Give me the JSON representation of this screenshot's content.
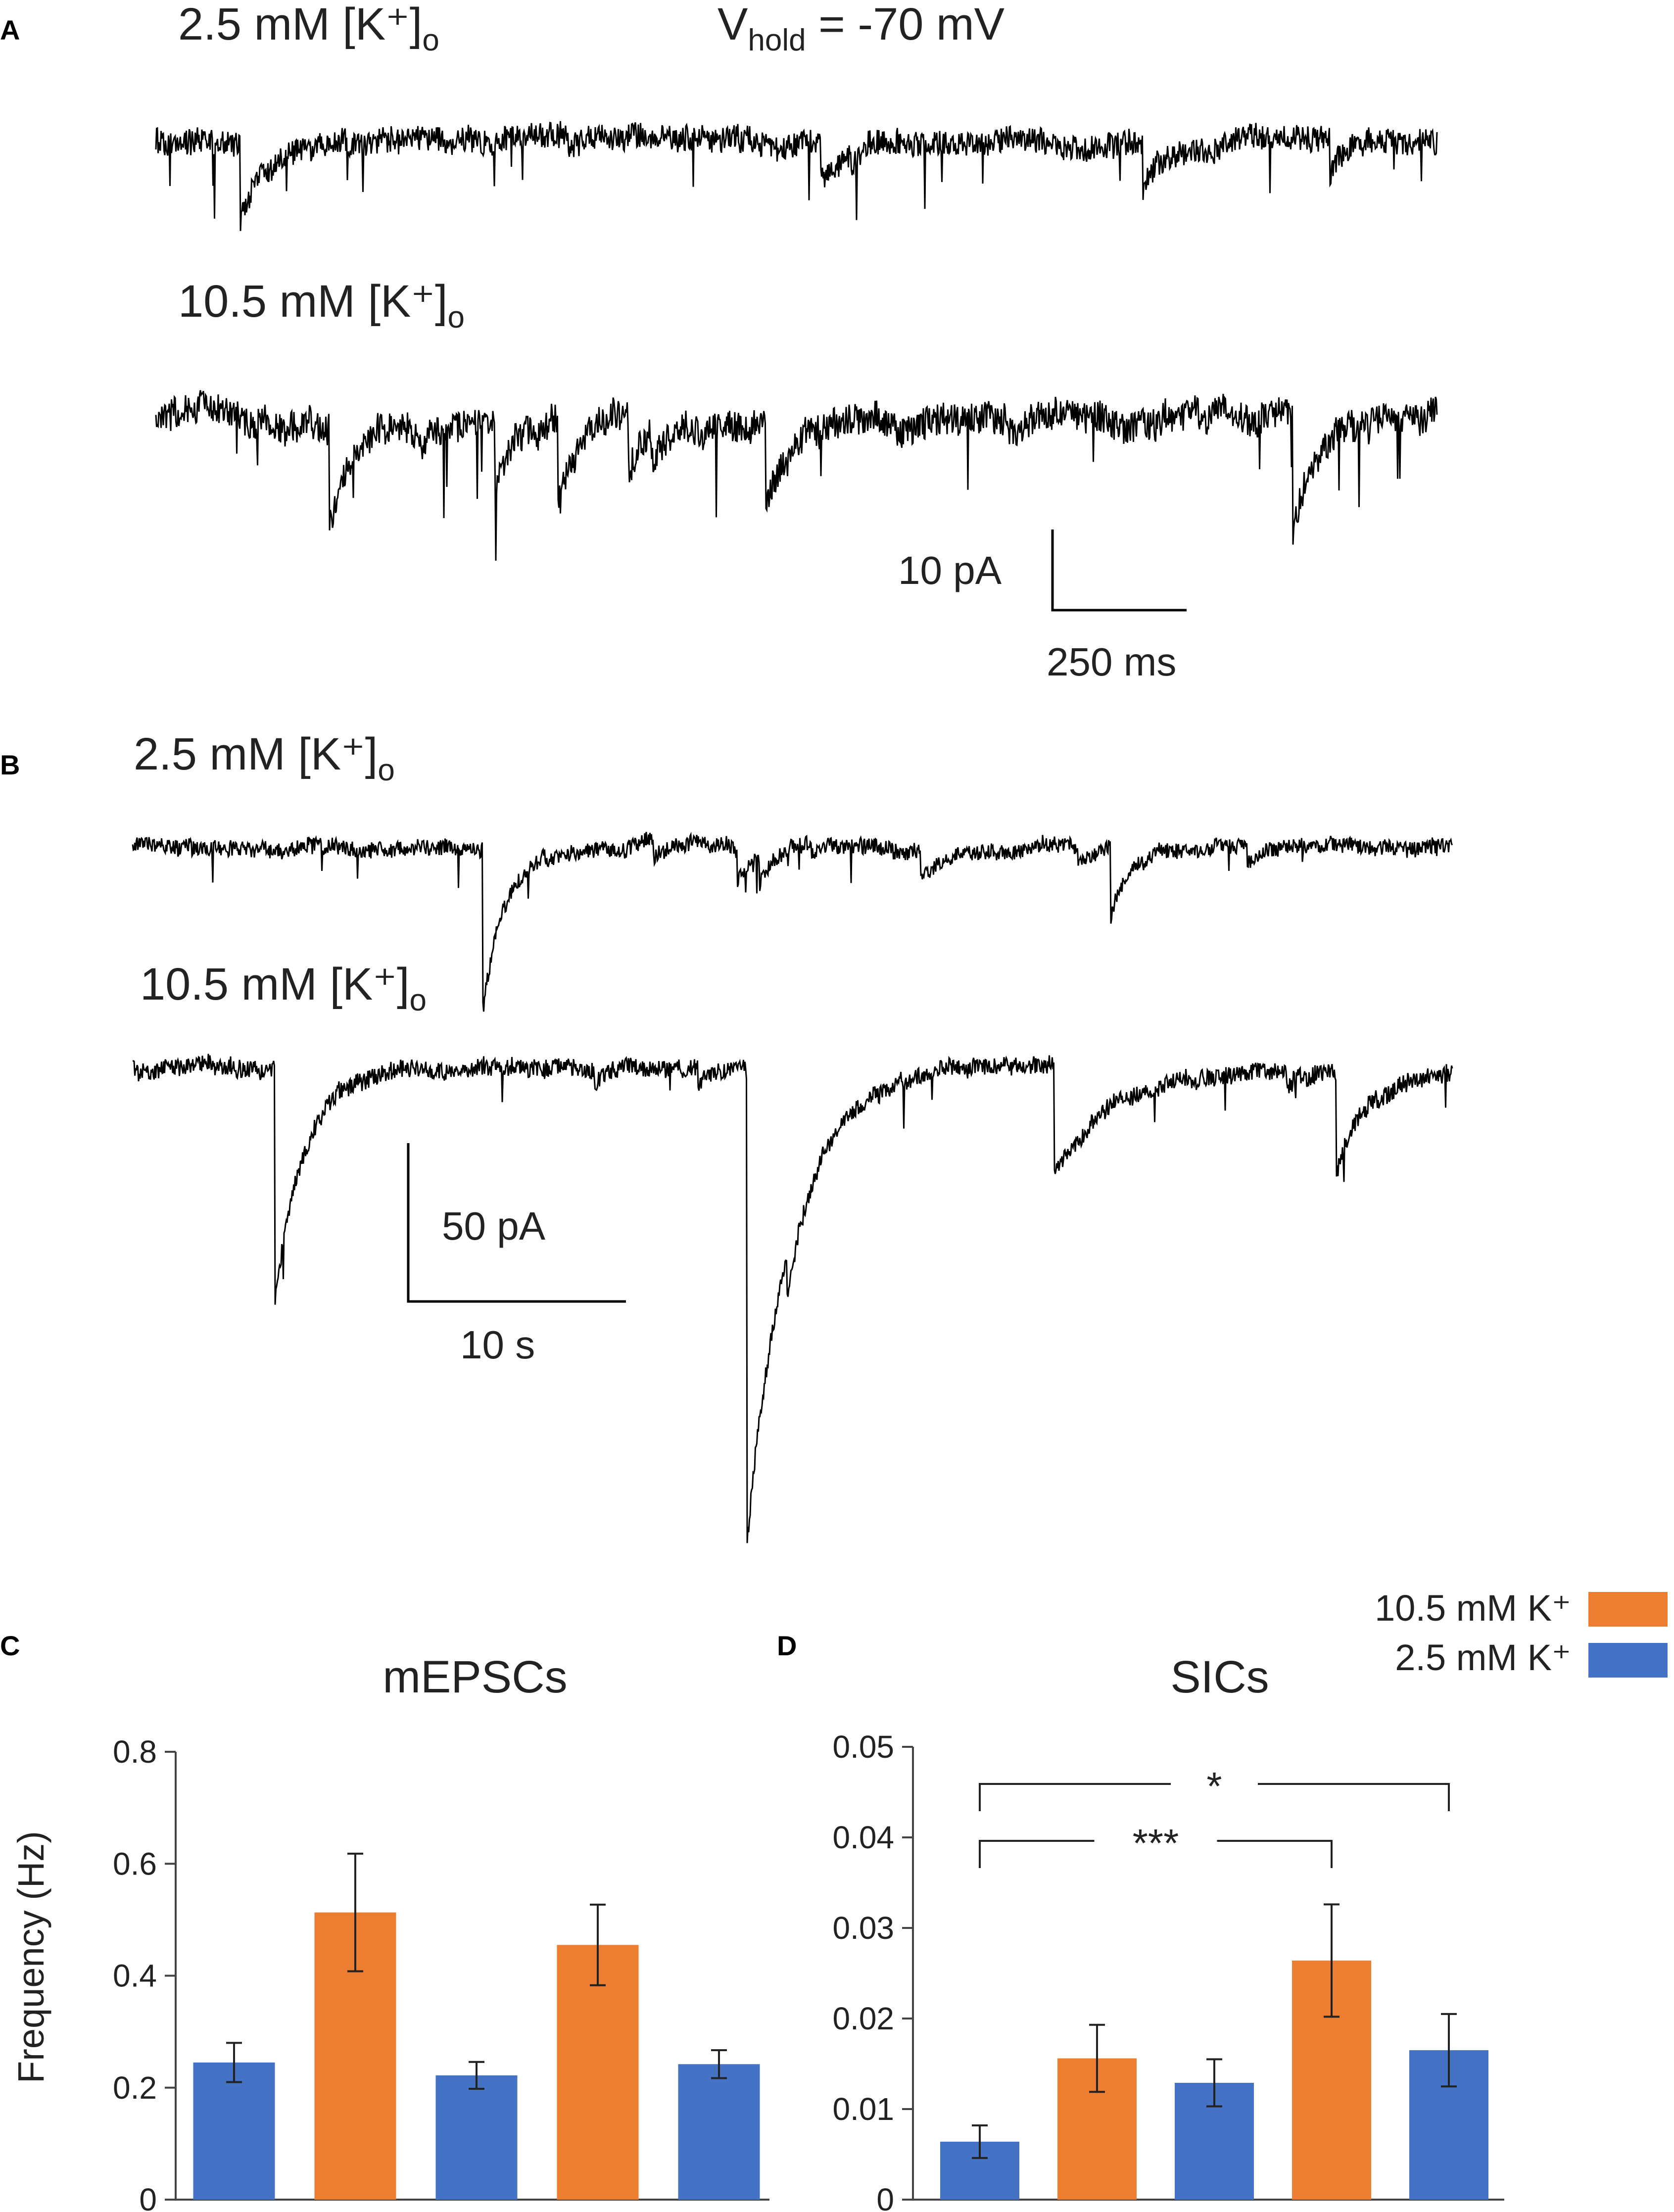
{
  "panels": {
    "A": {
      "letter": "A",
      "trace1_label": "2.5 mM [K⁺]",
      "trace1_sub": "o",
      "trace2_label": "10.5 mM [K⁺]",
      "trace2_sub": "o",
      "vhold_prefix": "V",
      "vhold_sub": "hold",
      "vhold_value": " = -70 mV",
      "scale_y": "10 pA",
      "scale_x": "250 ms"
    },
    "B": {
      "letter": "B",
      "trace1_label": "2.5 mM [K⁺]",
      "trace1_sub": "o",
      "trace2_label": "10.5 mM [K⁺]",
      "trace2_sub": "o",
      "scale_y": "50 pA",
      "scale_x": "10 s"
    }
  },
  "legend": {
    "items": [
      {
        "label": "10.5 mM K⁺",
        "color": "#ED7D31"
      },
      {
        "label": "2.5 mM K⁺",
        "color": "#4472C4"
      }
    ]
  },
  "chart_data": [
    {
      "letter": "C",
      "type": "bar",
      "title": "mEPSCs",
      "ylabel": "Frequency (Hz)",
      "ylim": [
        0,
        0.8
      ],
      "yticks": [
        "0",
        "0.2",
        "0.4",
        "0.6",
        "0.8"
      ],
      "bars": [
        {
          "value": 0.245,
          "err": 0.035,
          "color": "#4472C4"
        },
        {
          "value": 0.513,
          "err": 0.105,
          "color": "#ED7D31"
        },
        {
          "value": 0.222,
          "err": 0.024,
          "color": "#4472C4"
        },
        {
          "value": 0.455,
          "err": 0.072,
          "color": "#ED7D31"
        },
        {
          "value": 0.242,
          "err": 0.025,
          "color": "#4472C4"
        }
      ],
      "significance": []
    },
    {
      "letter": "D",
      "type": "bar",
      "title": "SICs",
      "ylabel": "",
      "ylim": [
        0,
        0.05
      ],
      "yticks": [
        "0",
        "0.01",
        "0.02",
        "0.03",
        "0.04",
        "0.05"
      ],
      "bars": [
        {
          "value": 0.0064,
          "err": 0.0018,
          "color": "#4472C4"
        },
        {
          "value": 0.0156,
          "err": 0.0037,
          "color": "#ED7D31"
        },
        {
          "value": 0.0129,
          "err": 0.0026,
          "color": "#4472C4"
        },
        {
          "value": 0.0264,
          "err": 0.0062,
          "color": "#ED7D31"
        },
        {
          "value": 0.0165,
          "err": 0.004,
          "color": "#4472C4"
        }
      ],
      "significance": [
        {
          "from": 0,
          "to": 4,
          "label": "*"
        },
        {
          "from": 0,
          "to": 3,
          "label": "***"
        }
      ]
    }
  ]
}
